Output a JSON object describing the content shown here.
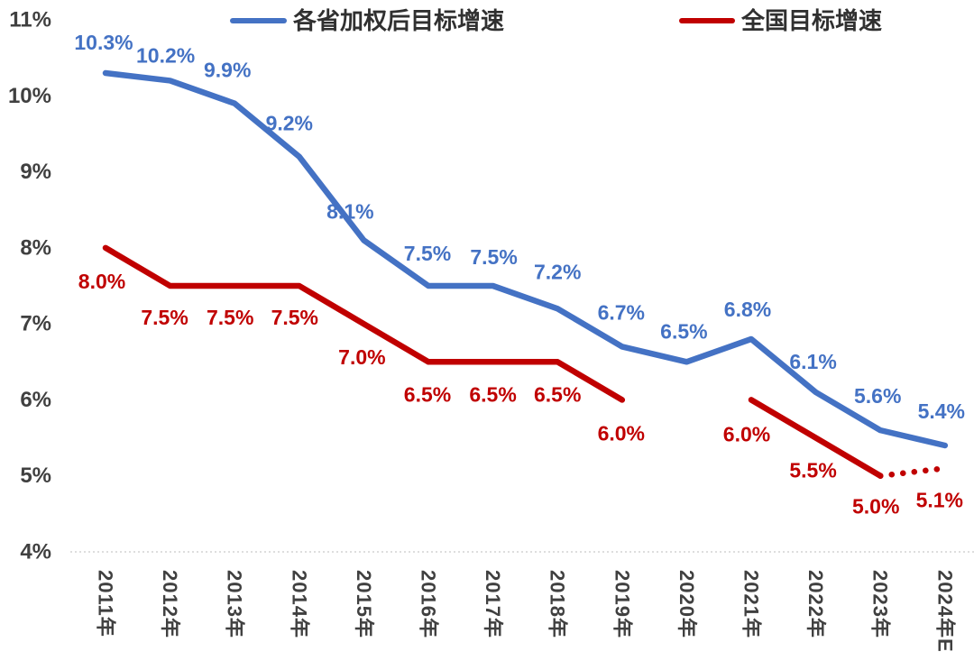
{
  "chart_data": {
    "type": "line",
    "title": "",
    "xlabel": "",
    "ylabel": "",
    "categories": [
      "2011年",
      "2012年",
      "2013年",
      "2014年",
      "2015年",
      "2016年",
      "2017年",
      "2018年",
      "2019年",
      "2020年",
      "2021年",
      "2022年",
      "2023年",
      "2024年E"
    ],
    "series": [
      {
        "name": "各省加权后目标增速",
        "color": "#4472C4",
        "line_style": "solid",
        "values": [
          10.3,
          10.2,
          9.9,
          9.2,
          8.1,
          7.5,
          7.5,
          7.2,
          6.7,
          6.5,
          6.8,
          6.1,
          5.6,
          5.4
        ],
        "labels": [
          "10.3%",
          "10.2%",
          "9.9%",
          "9.2%",
          "8.1%",
          "7.5%",
          "7.5%",
          "7.2%",
          "6.7%",
          "6.5%",
          "6.8%",
          "6.1%",
          "5.6%",
          "5.4%"
        ],
        "label_offsets": [
          [
            -2,
            -34
          ],
          [
            -5,
            -28
          ],
          [
            -8,
            -37
          ],
          [
            -11,
            -37
          ],
          [
            -15,
            -32
          ],
          [
            -1,
            -36
          ],
          [
            1,
            -32
          ],
          [
            0,
            -41
          ],
          [
            -1,
            -38
          ],
          [
            -3,
            -34
          ],
          [
            -4,
            -33
          ],
          [
            -3,
            -34
          ],
          [
            -3,
            -38
          ],
          [
            -4,
            -38
          ]
        ]
      },
      {
        "name": "全国目标增速",
        "color": "#C00000",
        "line_style": "solid",
        "dotted_from_index": 12,
        "values": [
          8.0,
          7.5,
          7.5,
          7.5,
          7.0,
          6.5,
          6.5,
          6.5,
          6.0,
          null,
          6.0,
          5.5,
          5.0,
          5.1
        ],
        "labels": [
          "8.0%",
          "7.5%",
          "7.5%",
          "7.5%",
          "7.0%",
          "6.5%",
          "6.5%",
          "6.5%",
          "6.0%",
          null,
          "6.0%",
          "5.5%",
          "5.0%",
          "5.1%"
        ],
        "label_offsets": [
          [
            -4,
            37
          ],
          [
            -6,
            35
          ],
          [
            -5,
            35
          ],
          [
            -5,
            35
          ],
          [
            -2,
            37
          ],
          [
            -1,
            36
          ],
          [
            0,
            36
          ],
          [
            0,
            36
          ],
          [
            -1,
            37
          ],
          null,
          [
            -5,
            38
          ],
          [
            -3,
            36
          ],
          [
            -5,
            34
          ],
          [
            -6,
            35
          ]
        ]
      }
    ],
    "ylim": [
      4,
      11
    ],
    "y_tick_values": [
      11,
      10,
      9,
      8,
      7,
      6,
      5,
      4
    ],
    "y_tick_labels": [
      "11%",
      "10%",
      "9%",
      "8%",
      "7%",
      "6%",
      "5%",
      "4%"
    ],
    "grid": false,
    "baseline_at": 4,
    "legend_position": "top",
    "colors": {
      "axis_text": "#404040",
      "legend_text": "#303030",
      "baseline": "#c9c9c9"
    }
  }
}
